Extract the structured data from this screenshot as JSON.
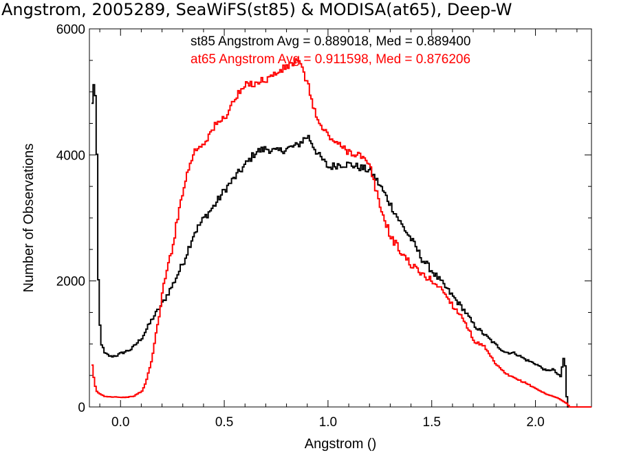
{
  "chart_data": {
    "type": "line",
    "title": "Angstrom, 2005289, SeaWiFS(st85) & MODISA(at65), Deep-W",
    "xlabel": "Angstrom ()",
    "ylabel": "Number of Observations",
    "xlim": [
      -0.15,
      2.27
    ],
    "ylim": [
      0,
      6000
    ],
    "x_ticks": [
      0.0,
      0.5,
      1.0,
      1.5,
      2.0
    ],
    "x_tick_labels": [
      "0.0",
      "0.5",
      "1.0",
      "1.5",
      "2.0"
    ],
    "y_ticks": [
      0,
      2000,
      4000,
      6000
    ],
    "y_tick_labels": [
      "0",
      "2000",
      "4000",
      "6000"
    ],
    "legend": [
      {
        "text": "st85 Angstrom Avg = 0.889018, Med = 0.889400",
        "color": "#000000"
      },
      {
        "text": "at65 Angstrom Avg = 0.911598, Med = 0.876206",
        "color": "#ff0000"
      }
    ],
    "series": [
      {
        "color": "#000000",
        "x": [
          -0.14,
          -0.13,
          -0.12,
          -0.11,
          -0.1,
          -0.08,
          -0.05,
          -0.02,
          0.0,
          0.05,
          0.1,
          0.15,
          0.2,
          0.25,
          0.3,
          0.35,
          0.4,
          0.45,
          0.5,
          0.55,
          0.6,
          0.65,
          0.7,
          0.75,
          0.8,
          0.85,
          0.88,
          0.9,
          0.95,
          1.0,
          1.05,
          1.1,
          1.15,
          1.2,
          1.25,
          1.3,
          1.35,
          1.4,
          1.45,
          1.5,
          1.55,
          1.6,
          1.65,
          1.7,
          1.75,
          1.8,
          1.85,
          1.9,
          1.95,
          2.0,
          2.05,
          2.08,
          2.1,
          2.12,
          2.13,
          2.14,
          2.15,
          2.16
        ],
        "values": [
          4800,
          5250,
          4600,
          2000,
          1050,
          850,
          800,
          820,
          850,
          920,
          1100,
          1400,
          1650,
          1950,
          2300,
          2750,
          3000,
          3200,
          3450,
          3650,
          3850,
          4050,
          4100,
          4050,
          4100,
          4150,
          4250,
          4300,
          4000,
          3800,
          3850,
          3850,
          3800,
          3750,
          3500,
          3200,
          2900,
          2650,
          2350,
          2150,
          1950,
          1750,
          1550,
          1300,
          1150,
          1000,
          870,
          850,
          750,
          680,
          570,
          600,
          530,
          470,
          800,
          650,
          0,
          0
        ]
      },
      {
        "color": "#ff0000",
        "x": [
          -0.14,
          -0.13,
          -0.12,
          -0.1,
          -0.08,
          -0.05,
          -0.02,
          0.0,
          0.03,
          0.06,
          0.1,
          0.12,
          0.15,
          0.18,
          0.2,
          0.25,
          0.3,
          0.35,
          0.4,
          0.45,
          0.5,
          0.55,
          0.6,
          0.65,
          0.7,
          0.75,
          0.8,
          0.85,
          0.88,
          0.9,
          0.95,
          1.0,
          1.05,
          1.1,
          1.15,
          1.2,
          1.25,
          1.3,
          1.35,
          1.4,
          1.45,
          1.5,
          1.55,
          1.6,
          1.65,
          1.7,
          1.75,
          1.8,
          1.85,
          1.9,
          1.95,
          2.0,
          2.05,
          2.1,
          2.15,
          2.16,
          2.27
        ],
        "values": [
          650,
          400,
          250,
          200,
          170,
          160,
          160,
          150,
          155,
          170,
          250,
          400,
          800,
          1400,
          1850,
          2600,
          3500,
          4050,
          4200,
          4450,
          4600,
          4900,
          5100,
          5150,
          5200,
          5300,
          5400,
          5500,
          5300,
          5100,
          4500,
          4300,
          4150,
          4050,
          4000,
          3800,
          3150,
          2700,
          2450,
          2250,
          2100,
          2000,
          1850,
          1600,
          1400,
          1050,
          950,
          700,
          530,
          450,
          380,
          290,
          200,
          150,
          50,
          0,
          0
        ]
      }
    ]
  }
}
